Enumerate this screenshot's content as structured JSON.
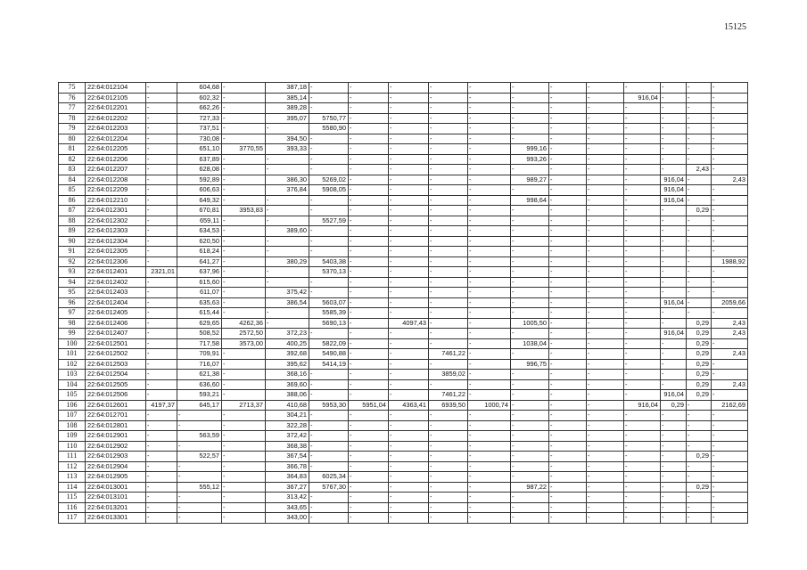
{
  "page_number": "15125",
  "table": {
    "rows": [
      [
        "75",
        "22:64:012104",
        "-",
        "604,68",
        "-",
        "387,18",
        "-",
        "-",
        "-",
        "-",
        "-",
        "-",
        "-",
        "-",
        "-",
        "-",
        "-",
        "-"
      ],
      [
        "76",
        "22:64:012105",
        "-",
        "602,32",
        "-",
        "385,14",
        "-",
        "-",
        "-",
        "-",
        "-",
        "-",
        "-",
        "-",
        "916,04",
        "-",
        "-",
        "-"
      ],
      [
        "77",
        "22:64:012201",
        "-",
        "662,26",
        "-",
        "389,28",
        "-",
        "-",
        "-",
        "-",
        "-",
        "-",
        "-",
        "-",
        "-",
        "-",
        "-",
        "-"
      ],
      [
        "78",
        "22:64:012202",
        "-",
        "727,33",
        "-",
        "395,07",
        "5750,77",
        "-",
        "-",
        "-",
        "-",
        "-",
        "-",
        "-",
        "-",
        "-",
        "-",
        "-"
      ],
      [
        "79",
        "22:64:012203",
        "-",
        "737,51",
        "-",
        "-",
        "5580,90",
        "-",
        "-",
        "-",
        "-",
        "-",
        "-",
        "-",
        "-",
        "-",
        "-",
        "-"
      ],
      [
        "80",
        "22:64:012204",
        "-",
        "730,08",
        "-",
        "394,50",
        "-",
        "-",
        "-",
        "-",
        "-",
        "-",
        "-",
        "-",
        "-",
        "-",
        "-",
        "-"
      ],
      [
        "81",
        "22:64:012205",
        "-",
        "651,10",
        "3770,55",
        "393,33",
        "-",
        "-",
        "-",
        "-",
        "-",
        "999,16",
        "-",
        "-",
        "-",
        "-",
        "-",
        "-"
      ],
      [
        "82",
        "22:64:012206",
        "-",
        "637,89",
        "-",
        "-",
        "-",
        "-",
        "-",
        "-",
        "-",
        "993,26",
        "-",
        "-",
        "-",
        "-",
        "-",
        "-"
      ],
      [
        "83",
        "22:64:012207",
        "-",
        "628,08",
        "-",
        "-",
        "-",
        "-",
        "-",
        "-",
        "-",
        "-",
        "-",
        "-",
        "-",
        "-",
        "2,43",
        "-"
      ],
      [
        "84",
        "22:64:012208",
        "-",
        "592,89",
        "-",
        "386,30",
        "5269,02",
        "-",
        "-",
        "-",
        "-",
        "989,27",
        "-",
        "-",
        "-",
        "916,04",
        "-",
        "2,43"
      ],
      [
        "85",
        "22:64:012209",
        "-",
        "606,63",
        "-",
        "376,84",
        "5908,05",
        "-",
        "-",
        "-",
        "-",
        "-",
        "-",
        "-",
        "-",
        "916,04",
        "-",
        "-"
      ],
      [
        "86",
        "22:64:012210",
        "-",
        "649,32",
        "-",
        "-",
        "-",
        "-",
        "-",
        "-",
        "-",
        "998,64",
        "-",
        "-",
        "-",
        "916,04",
        "-",
        "-"
      ],
      [
        "87",
        "22:64:012301",
        "-",
        "670,81",
        "3953,83",
        "-",
        "-",
        "-",
        "-",
        "-",
        "-",
        "-",
        "-",
        "-",
        "-",
        "-",
        "0,29",
        "-"
      ],
      [
        "88",
        "22:64:012302",
        "-",
        "659,11",
        "-",
        "-",
        "5527,59",
        "-",
        "-",
        "-",
        "-",
        "-",
        "-",
        "-",
        "-",
        "-",
        "-",
        "-"
      ],
      [
        "89",
        "22:64:012303",
        "-",
        "634,53",
        "-",
        "389,60",
        "-",
        "-",
        "-",
        "-",
        "-",
        "-",
        "-",
        "-",
        "-",
        "-",
        "-",
        "-"
      ],
      [
        "90",
        "22:64:012304",
        "-",
        "620,50",
        "-",
        "-",
        "-",
        "-",
        "-",
        "-",
        "-",
        "-",
        "-",
        "-",
        "-",
        "-",
        "-",
        "-"
      ],
      [
        "91",
        "22:64:012305",
        "-",
        "618,24",
        "-",
        "-",
        "-",
        "-",
        "-",
        "-",
        "-",
        "-",
        "-",
        "-",
        "-",
        "-",
        "-",
        "-"
      ],
      [
        "92",
        "22:64:012306",
        "-",
        "641,27",
        "-",
        "380,29",
        "5403,38",
        "-",
        "-",
        "-",
        "-",
        "-",
        "-",
        "-",
        "-",
        "-",
        "-",
        "1988,92"
      ],
      [
        "93",
        "22:64:012401",
        "2321,01",
        "637,96",
        "-",
        "-",
        "5370,13",
        "-",
        "-",
        "-",
        "-",
        "-",
        "-",
        "-",
        "-",
        "-",
        "-",
        "-"
      ],
      [
        "94",
        "22:64:012402",
        "-",
        "615,60",
        "-",
        "-",
        "-",
        "-",
        "-",
        "-",
        "-",
        "-",
        "-",
        "-",
        "-",
        "-",
        "-",
        "-"
      ],
      [
        "95",
        "22:64:012403",
        "-",
        "611,07",
        "-",
        "375,42",
        "-",
        "-",
        "-",
        "-",
        "-",
        "-",
        "-",
        "-",
        "-",
        "-",
        "-",
        "-"
      ],
      [
        "96",
        "22:64:012404",
        "-",
        "635,63",
        "-",
        "386,54",
        "5603,07",
        "-",
        "-",
        "-",
        "-",
        "-",
        "-",
        "-",
        "-",
        "916,04",
        "-",
        "2059,66"
      ],
      [
        "97",
        "22:64:012405",
        "-",
        "615,44",
        "-",
        "-",
        "5585,39",
        "-",
        "-",
        "-",
        "-",
        "-",
        "-",
        "-",
        "-",
        "-",
        "-",
        "-"
      ],
      [
        "98",
        "22:64:012406",
        "-",
        "629,65",
        "4262,36",
        "-",
        "5690,13",
        "-",
        "4097,43",
        "-",
        "-",
        "1005,50",
        "-",
        "-",
        "-",
        "-",
        "0,29",
        "2,43"
      ],
      [
        "99",
        "22:64:012407",
        "-",
        "508,52",
        "2572,50",
        "372,23",
        "-",
        "-",
        "-",
        "-",
        "-",
        "-",
        "-",
        "-",
        "-",
        "916,04",
        "0,29",
        "2,43"
      ],
      [
        "100",
        "22:64:012501",
        "-",
        "717,58",
        "3573,00",
        "400,25",
        "5822,09",
        "-",
        "-",
        "-",
        "-",
        "1038,04",
        "-",
        "-",
        "-",
        "-",
        "0,29",
        "-"
      ],
      [
        "101",
        "22:64:012502",
        "-",
        "709,91",
        "-",
        "392,68",
        "5490,88",
        "-",
        "-",
        "7461,22",
        "-",
        "-",
        "-",
        "-",
        "-",
        "-",
        "0,29",
        "2,43"
      ],
      [
        "102",
        "22:64:012503",
        "-",
        "716,07",
        "-",
        "395,62",
        "5414,19",
        "-",
        "-",
        "-",
        "-",
        "996,75",
        "-",
        "-",
        "-",
        "-",
        "0,29",
        "-"
      ],
      [
        "103",
        "22:64:012504",
        "-",
        "621,38",
        "-",
        "368,16",
        "-",
        "-",
        "-",
        "3859,02",
        "-",
        "-",
        "-",
        "-",
        "-",
        "-",
        "0,29",
        "-"
      ],
      [
        "104",
        "22:64:012505",
        "-",
        "636,60",
        "-",
        "369,60",
        "-",
        "-",
        "-",
        "-",
        "-",
        "-",
        "-",
        "-",
        "-",
        "-",
        "0,29",
        "2,43"
      ],
      [
        "105",
        "22:64:012506",
        "-",
        "593,21",
        "-",
        "388,06",
        "-",
        "-",
        "-",
        "7461,22",
        "-",
        "-",
        "-",
        "-",
        "-",
        "916,04",
        "0,29",
        "-"
      ],
      [
        "106",
        "22:64:012601",
        "4197,37",
        "645,17",
        "2713,37",
        "410,68",
        "5953,30",
        "5951,04",
        "4363,41",
        "6939,50",
        "1000,74",
        "-",
        "-",
        "-",
        "916,04",
        "0,29",
        "-",
        "2162,69"
      ],
      [
        "107",
        "22:64:012701",
        "-",
        "-",
        "-",
        "304,21",
        "-",
        "-",
        "-",
        "-",
        "-",
        "-",
        "-",
        "-",
        "-",
        "-",
        "-",
        "-"
      ],
      [
        "108",
        "22:64:012801",
        "-",
        "-",
        "-",
        "322,28",
        "-",
        "-",
        "-",
        "-",
        "-",
        "-",
        "-",
        "-",
        "-",
        "-",
        "-",
        "-"
      ],
      [
        "109",
        "22:64:012901",
        "-",
        "563,59",
        "-",
        "372,42",
        "-",
        "-",
        "-",
        "-",
        "-",
        "-",
        "-",
        "-",
        "-",
        "-",
        "-",
        "-"
      ],
      [
        "110",
        "22:64:012902",
        "-",
        "-",
        "-",
        "368,38",
        "-",
        "-",
        "-",
        "-",
        "-",
        "-",
        "-",
        "-",
        "-",
        "-",
        "-",
        "-"
      ],
      [
        "111",
        "22:64:012903",
        "-",
        "522,57",
        "-",
        "367,54",
        "-",
        "-",
        "-",
        "-",
        "-",
        "-",
        "-",
        "-",
        "-",
        "-",
        "0,29",
        "-"
      ],
      [
        "112",
        "22:64:012904",
        "-",
        "-",
        "-",
        "366,78",
        "-",
        "-",
        "-",
        "-",
        "-",
        "-",
        "-",
        "-",
        "-",
        "-",
        "-",
        "-"
      ],
      [
        "113",
        "22:64:012905",
        "-",
        "-",
        "-",
        "364,83",
        "6025,34",
        "-",
        "-",
        "-",
        "-",
        "-",
        "-",
        "-",
        "-",
        "-",
        "-",
        "-"
      ],
      [
        "114",
        "22:64:013001",
        "-",
        "555,12",
        "-",
        "367,27",
        "5767,30",
        "-",
        "-",
        "-",
        "-",
        "987,22",
        "-",
        "-",
        "-",
        "-",
        "0,29",
        "-"
      ],
      [
        "115",
        "22:64:013101",
        "-",
        "-",
        "-",
        "313,42",
        "-",
        "-",
        "-",
        "-",
        "-",
        "-",
        "-",
        "-",
        "-",
        "-",
        "-",
        "-"
      ],
      [
        "116",
        "22:64:013201",
        "-",
        "-",
        "-",
        "343,65",
        "-",
        "-",
        "-",
        "-",
        "-",
        "-",
        "-",
        "-",
        "-",
        "-",
        "-",
        "-"
      ],
      [
        "117",
        "22:64:013301",
        "-",
        "-",
        "-",
        "343,00",
        "-",
        "-",
        "-",
        "-",
        "-",
        "-",
        "-",
        "-",
        "-",
        "-",
        "-",
        "-"
      ]
    ]
  }
}
